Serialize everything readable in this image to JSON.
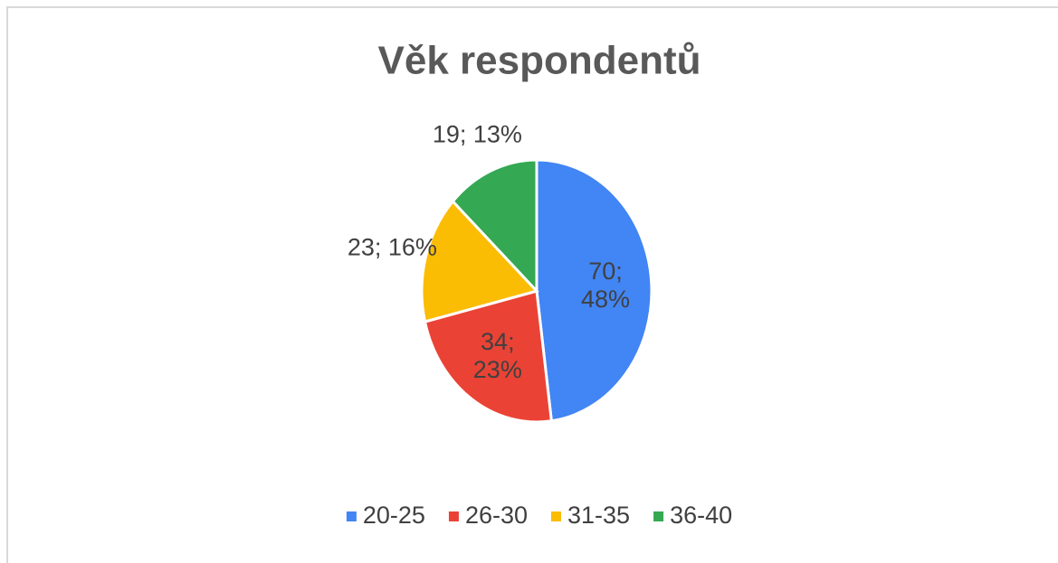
{
  "chart_data": {
    "type": "pie",
    "title": "Věk respondentů",
    "categories": [
      "20-25",
      "26-30",
      "31-35",
      "36-40"
    ],
    "values": [
      70,
      34,
      23,
      19
    ],
    "value_labels": [
      "70; 48%",
      "34; 23%",
      "23; 16%",
      "19; 13%"
    ],
    "colors": [
      "#4285f4",
      "#ea4335",
      "#fbbc04",
      "#34a853"
    ],
    "legend": "bottom"
  }
}
